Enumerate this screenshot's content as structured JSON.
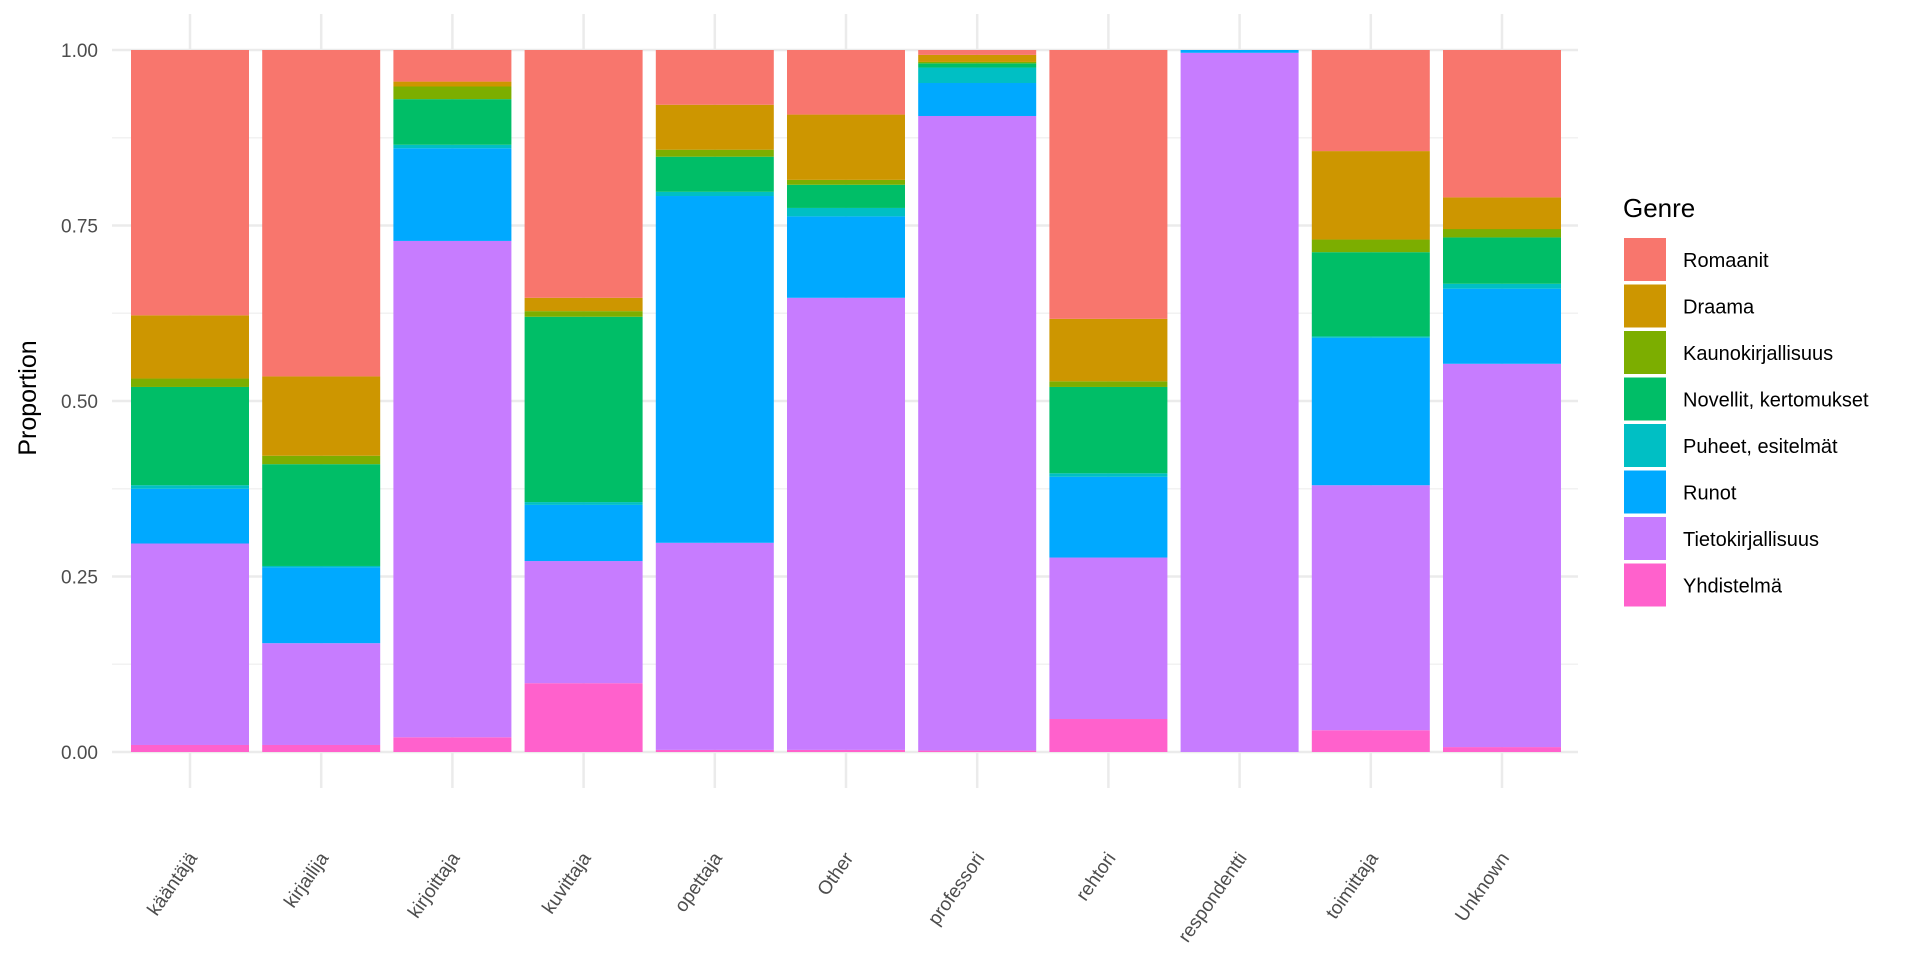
{
  "chart_data": {
    "type": "bar",
    "stacked": true,
    "title": "",
    "xlabel": "",
    "ylabel": "Proportion",
    "ylim": [
      0,
      1
    ],
    "yticks": [
      "0.00",
      "0.25",
      "0.50",
      "0.75",
      "1.00"
    ],
    "grid": true,
    "legend": {
      "title": "Genre",
      "position": "right"
    },
    "categories": [
      "kääntäjä",
      "kirjailija",
      "kirjoittaja",
      "kuvittaja",
      "opettaja",
      "Other",
      "professori",
      "rehtori",
      "respondentti",
      "toimittaja",
      "Unknown"
    ],
    "series": [
      {
        "name": "Romaanit",
        "color": "#F8766D",
        "values": [
          0.378,
          0.465,
          0.045,
          0.353,
          0.078,
          0.092,
          0.007,
          0.383,
          0.0,
          0.144,
          0.21
        ]
      },
      {
        "name": "Draama",
        "color": "#CD9600",
        "values": [
          0.09,
          0.113,
          0.007,
          0.019,
          0.064,
          0.093,
          0.01,
          0.089,
          0.0,
          0.126,
          0.045
        ]
      },
      {
        "name": "Kaunokirjallisuus",
        "color": "#7CAE00",
        "values": [
          0.012,
          0.012,
          0.018,
          0.008,
          0.01,
          0.007,
          0.002,
          0.008,
          0.0,
          0.018,
          0.012
        ]
      },
      {
        "name": "Novellit, kertomukset",
        "color": "#00BE67",
        "values": [
          0.14,
          0.145,
          0.065,
          0.264,
          0.05,
          0.033,
          0.006,
          0.123,
          0.0,
          0.12,
          0.066
        ]
      },
      {
        "name": "Puheet, esitelmät",
        "color": "#00BFC4",
        "values": [
          0.005,
          0.002,
          0.005,
          0.004,
          0.006,
          0.012,
          0.022,
          0.005,
          0.0,
          0.002,
          0.007
        ]
      },
      {
        "name": "Runot",
        "color": "#00A9FF",
        "values": [
          0.078,
          0.108,
          0.132,
          0.08,
          0.494,
          0.116,
          0.047,
          0.115,
          0.004,
          0.21,
          0.107
        ]
      },
      {
        "name": "Tietokirjallisuus",
        "color": "#C77CFF",
        "values": [
          0.287,
          0.145,
          0.707,
          0.174,
          0.295,
          0.644,
          0.904,
          0.23,
          0.996,
          0.349,
          0.546
        ]
      },
      {
        "name": "Yhdistelmä",
        "color": "#FF61CC",
        "values": [
          0.01,
          0.01,
          0.021,
          0.098,
          0.003,
          0.003,
          0.002,
          0.047,
          0.0,
          0.031,
          0.007
        ]
      }
    ]
  }
}
